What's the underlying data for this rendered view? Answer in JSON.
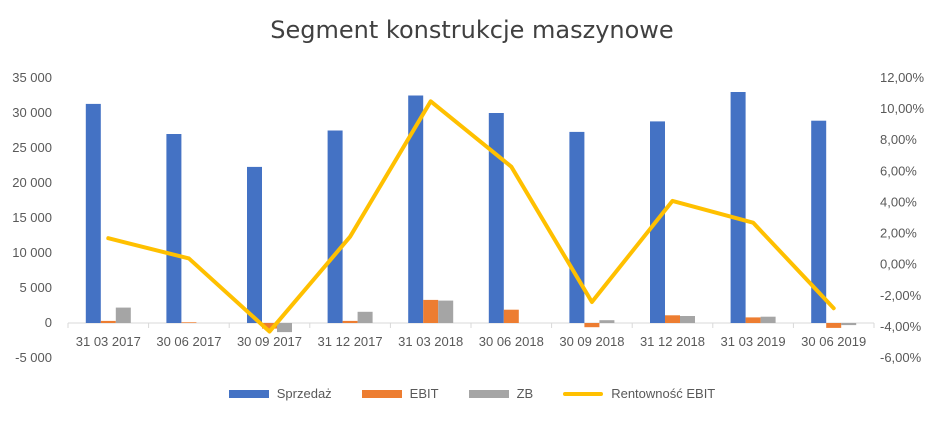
{
  "chart_data": {
    "type": "bar",
    "title": "Segment konstrukcje maszynowe",
    "categories": [
      "31 03 2017",
      "30 06 2017",
      "30 09 2017",
      "31 12 2017",
      "31 03 2018",
      "30 06 2018",
      "30 09 2018",
      "31 12 2018",
      "31 03 2019",
      "30 06 2019"
    ],
    "series": [
      {
        "name": "Sprzedaż",
        "type": "bar",
        "axis": "left",
        "color": "#4472C4",
        "values": [
          31300,
          27000,
          22300,
          27500,
          32500,
          30000,
          27300,
          28800,
          33000,
          28900
        ]
      },
      {
        "name": "EBIT",
        "type": "bar",
        "axis": "left",
        "color": "#ED7D31",
        "values": [
          300,
          100,
          -800,
          300,
          3300,
          1900,
          -600,
          1100,
          800,
          -700
        ]
      },
      {
        "name": "ZB",
        "type": "bar",
        "axis": "left",
        "color": "#A5A5A5",
        "values": [
          2200,
          0,
          -1300,
          1600,
          3200,
          0,
          400,
          1000,
          900,
          -300
        ]
      },
      {
        "name": "Rentowność EBIT",
        "type": "line",
        "axis": "right",
        "color": "#FFC000",
        "values": [
          0.017,
          0.004,
          -0.043,
          0.018,
          0.105,
          0.063,
          -0.024,
          0.041,
          0.027,
          -0.028
        ]
      }
    ],
    "y_left": {
      "min": -5000,
      "max": 35000,
      "step": 5000,
      "tick_labels": [
        "-5 000",
        "0",
        "5 000",
        "10 000",
        "15 000",
        "20 000",
        "25 000",
        "30 000",
        "35 000"
      ]
    },
    "y_right": {
      "min": -0.06,
      "max": 0.12,
      "step": 0.02,
      "tick_labels": [
        "-6,00%",
        "-4,00%",
        "-2,00%",
        "0,00%",
        "2,00%",
        "4,00%",
        "6,00%",
        "8,00%",
        "10,00%",
        "12,00%"
      ]
    },
    "grid": false,
    "legend_position": "bottom"
  }
}
